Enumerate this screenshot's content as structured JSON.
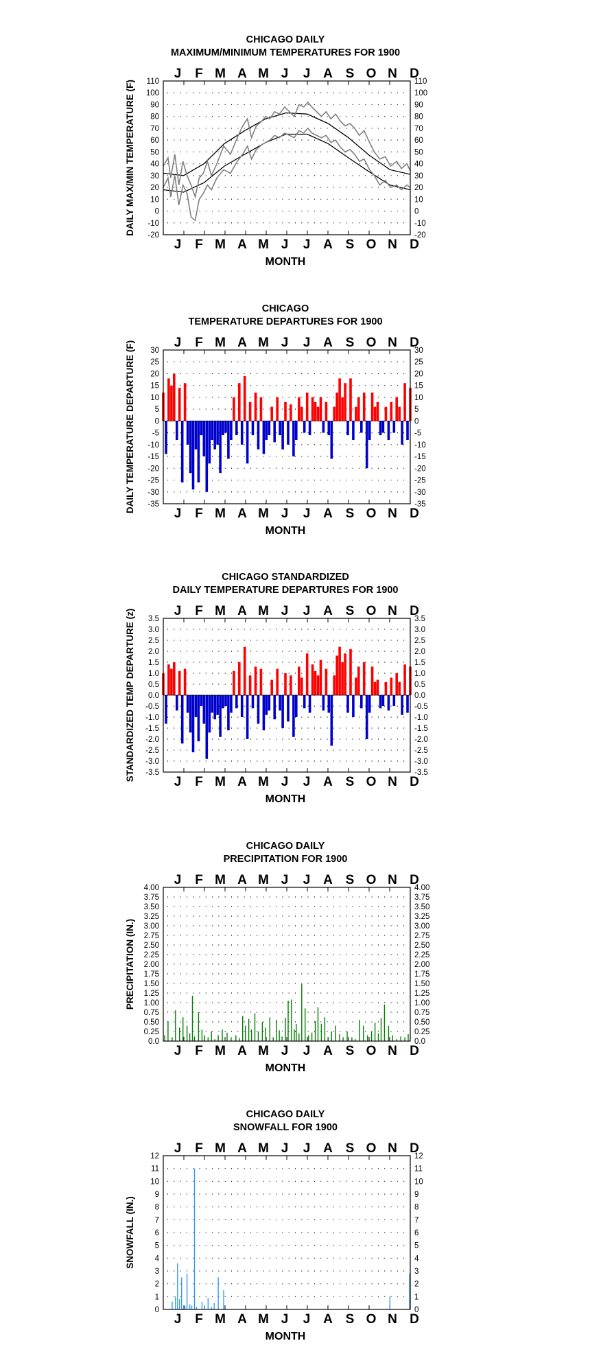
{
  "months": [
    "J",
    "F",
    "M",
    "A",
    "M",
    "J",
    "J",
    "A",
    "S",
    "O",
    "N",
    "D"
  ],
  "colors": {
    "positive": "#ff0000",
    "negative": "#0000cc",
    "precip": "#008000",
    "snow": "#3399ff",
    "temp_obs": "#808080",
    "temp_normal": "#000000"
  },
  "charts": [
    {
      "title1": "CHICAGO DAILY",
      "title2": "MAXIMUM/MINIMUM TEMPERATURES FOR 1900",
      "ylabel": "DAILY MAX/MIN TEMPERATURE (F)",
      "xlabel": "MONTH",
      "ticks": [
        "110",
        "100",
        "90",
        "80",
        "70",
        "60",
        "50",
        "40",
        "30",
        "20",
        "10",
        "0",
        "-10",
        "-20"
      ]
    },
    {
      "title1": "CHICAGO",
      "title2": "TEMPERATURE DEPARTURES FOR 1900",
      "ylabel": "DAILY TEMPERATURE DEPARTURE (F)",
      "xlabel": "MONTH",
      "ticks": [
        "30",
        "25",
        "20",
        "15",
        "10",
        "5",
        "0",
        "-5",
        "-10",
        "-15",
        "-20",
        "-25",
        "-30",
        "-35"
      ]
    },
    {
      "title1": "CHICAGO STANDARDIZED",
      "title2": "DAILY TEMPERATURE DEPARTURES FOR 1900",
      "ylabel": "STANDARDIZED TEMP DEPARTURE (z)",
      "xlabel": "MONTH",
      "ticks": [
        "3.5",
        "3.0",
        "2.5",
        "2.0",
        "1.5",
        "1.0",
        "0.5",
        "0.0",
        "-0.5",
        "-1.0",
        "-1.5",
        "-2.0",
        "-2.5",
        "-3.0",
        "-3.5"
      ]
    },
    {
      "title1": "CHICAGO DAILY",
      "title2": "PRECIPITATION FOR 1900",
      "ylabel": "PRECIPITATION (IN.)",
      "xlabel": "MONTH",
      "ticks": [
        "4.00",
        "3.75",
        "3.50",
        "3.25",
        "3.00",
        "2.75",
        "2.50",
        "2.25",
        "2.00",
        "1.75",
        "1.50",
        "1.25",
        "1.00",
        "0.75",
        "0.50",
        "0.25",
        "0.0"
      ]
    },
    {
      "title1": "CHICAGO DAILY",
      "title2": "SNOWFALL FOR 1900",
      "ylabel": "SNOWFALL (IN.)",
      "xlabel": "MONTH",
      "ticks": [
        "12",
        "11",
        "10",
        "9",
        "8",
        "7",
        "6",
        "5",
        "4",
        "3",
        "2",
        "1",
        "0"
      ]
    }
  ],
  "chart_data": [
    {
      "type": "line",
      "ylim": [
        -20,
        110
      ],
      "grid": true,
      "x_unit": "day of year",
      "series": [
        {
          "kind": "normal_max",
          "points": [
            [
              1,
              32
            ],
            [
              31,
              30
            ],
            [
              61,
              40
            ],
            [
              91,
              57
            ],
            [
              121,
              68
            ],
            [
              152,
              78
            ],
            [
              182,
              83
            ],
            [
              213,
              82
            ],
            [
              244,
              74
            ],
            [
              274,
              62
            ],
            [
              305,
              47
            ],
            [
              335,
              35
            ],
            [
              365,
              31
            ]
          ]
        },
        {
          "kind": "normal_min",
          "points": [
            [
              1,
              18
            ],
            [
              31,
              16
            ],
            [
              61,
              24
            ],
            [
              91,
              38
            ],
            [
              121,
              48
            ],
            [
              152,
              58
            ],
            [
              182,
              65
            ],
            [
              213,
              65
            ],
            [
              244,
              57
            ],
            [
              274,
              45
            ],
            [
              305,
              33
            ],
            [
              335,
              22
            ],
            [
              365,
              18
            ]
          ]
        },
        {
          "kind": "observed_max",
          "points": [
            [
              1,
              38
            ],
            [
              8,
              45
            ],
            [
              12,
              28
            ],
            [
              18,
              48
            ],
            [
              24,
              22
            ],
            [
              30,
              42
            ],
            [
              36,
              30
            ],
            [
              42,
              22
            ],
            [
              48,
              12
            ],
            [
              54,
              28
            ],
            [
              60,
              32
            ],
            [
              66,
              42
            ],
            [
              72,
              30
            ],
            [
              80,
              40
            ],
            [
              90,
              55
            ],
            [
              100,
              48
            ],
            [
              110,
              62
            ],
            [
              118,
              72
            ],
            [
              125,
              78
            ],
            [
              131,
              62
            ],
            [
              138,
              72
            ],
            [
              146,
              76
            ],
            [
              152,
              80
            ],
            [
              158,
              78
            ],
            [
              165,
              84
            ],
            [
              172,
              82
            ],
            [
              180,
              88
            ],
            [
              187,
              84
            ],
            [
              194,
              80
            ],
            [
              201,
              90
            ],
            [
              208,
              88
            ],
            [
              214,
              92
            ],
            [
              220,
              88
            ],
            [
              227,
              84
            ],
            [
              234,
              80
            ],
            [
              241,
              84
            ],
            [
              248,
              78
            ],
            [
              255,
              82
            ],
            [
              262,
              76
            ],
            [
              269,
              72
            ],
            [
              276,
              74
            ],
            [
              283,
              70
            ],
            [
              290,
              64
            ],
            [
              297,
              68
            ],
            [
              305,
              58
            ],
            [
              312,
              50
            ],
            [
              320,
              44
            ],
            [
              328,
              46
            ],
            [
              336,
              38
            ],
            [
              345,
              42
            ],
            [
              352,
              36
            ],
            [
              360,
              40
            ],
            [
              365,
              34
            ]
          ]
        },
        {
          "kind": "observed_min",
          "points": [
            [
              1,
              20
            ],
            [
              8,
              28
            ],
            [
              12,
              12
            ],
            [
              18,
              30
            ],
            [
              24,
              5
            ],
            [
              30,
              22
            ],
            [
              36,
              15
            ],
            [
              42,
              -5
            ],
            [
              48,
              -8
            ],
            [
              54,
              10
            ],
            [
              60,
              15
            ],
            [
              66,
              22
            ],
            [
              72,
              18
            ],
            [
              80,
              28
            ],
            [
              90,
              35
            ],
            [
              100,
              32
            ],
            [
              110,
              42
            ],
            [
              118,
              48
            ],
            [
              125,
              55
            ],
            [
              131,
              44
            ],
            [
              138,
              52
            ],
            [
              146,
              56
            ],
            [
              152,
              58
            ],
            [
              158,
              60
            ],
            [
              165,
              64
            ],
            [
              172,
              62
            ],
            [
              180,
              66
            ],
            [
              187,
              64
            ],
            [
              194,
              62
            ],
            [
              201,
              68
            ],
            [
              208,
              66
            ],
            [
              214,
              70
            ],
            [
              220,
              66
            ],
            [
              227,
              64
            ],
            [
              234,
              62
            ],
            [
              241,
              64
            ],
            [
              248,
              58
            ],
            [
              255,
              60
            ],
            [
              262,
              54
            ],
            [
              269,
              50
            ],
            [
              276,
              52
            ],
            [
              283,
              48
            ],
            [
              290,
              42
            ],
            [
              297,
              44
            ],
            [
              305,
              35
            ],
            [
              312,
              30
            ],
            [
              320,
              22
            ],
            [
              328,
              26
            ],
            [
              336,
              20
            ],
            [
              345,
              22
            ],
            [
              352,
              18
            ],
            [
              360,
              22
            ],
            [
              365,
              20
            ]
          ]
        }
      ]
    },
    {
      "type": "bar",
      "ylim": [
        -35,
        30
      ],
      "grid": true,
      "x_unit": "day of year",
      "days": [
        1,
        5,
        9,
        13,
        17,
        21,
        25,
        29,
        33,
        37,
        41,
        45,
        49,
        53,
        57,
        61,
        65,
        69,
        73,
        77,
        81,
        85,
        89,
        93,
        97,
        101,
        105,
        109,
        113,
        117,
        121,
        125,
        129,
        133,
        137,
        141,
        145,
        149,
        153,
        157,
        161,
        165,
        169,
        173,
        177,
        181,
        185,
        189,
        193,
        197,
        201,
        205,
        209,
        213,
        217,
        221,
        225,
        229,
        233,
        237,
        241,
        245,
        249,
        253,
        257,
        261,
        265,
        269,
        273,
        277,
        281,
        285,
        289,
        293,
        297,
        301,
        305,
        309,
        313,
        317,
        321,
        325,
        329,
        333,
        337,
        341,
        345,
        349,
        353,
        357,
        361,
        365
      ],
      "values": [
        12,
        -14,
        18,
        15,
        20,
        -8,
        14,
        -26,
        16,
        -10,
        -22,
        -29,
        -12,
        -26,
        -6,
        -15,
        -30,
        -18,
        -8,
        -12,
        -10,
        -22,
        -6,
        -5,
        -16,
        -8,
        10,
        -6,
        16,
        -10,
        19,
        -18,
        8,
        -6,
        12,
        -12,
        10,
        -14,
        -8,
        -6,
        6,
        -9,
        10,
        -6,
        -12,
        8,
        -10,
        7,
        -15,
        -8,
        10,
        6,
        -5,
        12,
        -6,
        10,
        8,
        6,
        10,
        -5,
        8,
        -6,
        -16,
        6,
        12,
        18,
        10,
        16,
        -6,
        18,
        -8,
        6,
        10,
        -5,
        12,
        -20,
        -8,
        12,
        6,
        8,
        -6,
        -5,
        6,
        -8,
        8,
        -5,
        10,
        6,
        -10,
        16,
        -8,
        14
      ]
    },
    {
      "type": "bar",
      "ylim": [
        -3.5,
        3.5
      ],
      "grid": true,
      "x_unit": "day of year",
      "days": [
        1,
        5,
        9,
        13,
        17,
        21,
        25,
        29,
        33,
        37,
        41,
        45,
        49,
        53,
        57,
        61,
        65,
        69,
        73,
        77,
        81,
        85,
        89,
        93,
        97,
        101,
        105,
        109,
        113,
        117,
        121,
        125,
        129,
        133,
        137,
        141,
        145,
        149,
        153,
        157,
        161,
        165,
        169,
        173,
        177,
        181,
        185,
        189,
        193,
        197,
        201,
        205,
        209,
        213,
        217,
        221,
        225,
        229,
        233,
        237,
        241,
        245,
        249,
        253,
        257,
        261,
        265,
        269,
        273,
        277,
        281,
        285,
        289,
        293,
        297,
        301,
        305,
        309,
        313,
        317,
        321,
        325,
        329,
        333,
        337,
        341,
        345,
        349,
        353,
        357,
        361,
        365
      ],
      "values": [
        1.0,
        -1.3,
        1.4,
        1.2,
        1.5,
        -0.7,
        1.1,
        -2.2,
        1.2,
        -0.8,
        -1.7,
        -2.6,
        -1.0,
        -2.1,
        -0.5,
        -1.3,
        -2.9,
        -1.7,
        -0.8,
        -1.1,
        -0.9,
        -1.9,
        -0.6,
        -0.5,
        -1.6,
        -0.8,
        1.1,
        -0.6,
        1.5,
        -1.0,
        2.2,
        -2.0,
        0.9,
        -0.6,
        1.3,
        -1.3,
        1.2,
        -1.6,
        -0.9,
        -0.7,
        0.7,
        -1.1,
        1.2,
        -0.7,
        -1.5,
        1.0,
        -1.2,
        0.9,
        -1.9,
        -1.0,
        1.3,
        0.8,
        -0.6,
        1.9,
        -0.8,
        1.4,
        1.1,
        0.9,
        1.6,
        -0.7,
        1.2,
        -0.8,
        -2.3,
        0.9,
        1.8,
        2.2,
        1.5,
        1.9,
        -0.8,
        2.1,
        -1.0,
        0.8,
        1.3,
        -0.6,
        1.5,
        -2.0,
        -0.8,
        1.3,
        0.6,
        0.7,
        -0.6,
        -0.5,
        0.6,
        -0.7,
        0.8,
        -0.5,
        1.0,
        0.6,
        -0.9,
        1.4,
        -0.8,
        1.3
      ]
    },
    {
      "type": "bar",
      "ylim": [
        0,
        4
      ],
      "grid": true,
      "x_unit": "day of year",
      "days": [
        3,
        8,
        14,
        19,
        25,
        30,
        36,
        40,
        44,
        47,
        53,
        58,
        62,
        67,
        72,
        77,
        82,
        88,
        95,
        101,
        108,
        113,
        118,
        122,
        127,
        131,
        136,
        141,
        147,
        152,
        158,
        163,
        168,
        172,
        176,
        181,
        185,
        190,
        194,
        197,
        201,
        205,
        210,
        215,
        220,
        225,
        229,
        234,
        239,
        244,
        249,
        255,
        261,
        266,
        272,
        279,
        284,
        290,
        296,
        302,
        308,
        313,
        318,
        322,
        327,
        333,
        339,
        345,
        351,
        357,
        362
      ],
      "values": [
        0.15,
        0.52,
        0.1,
        0.8,
        0.35,
        0.62,
        0.4,
        0.2,
        1.18,
        0.12,
        0.75,
        0.3,
        0.15,
        0.1,
        0.25,
        0.05,
        0.15,
        0.3,
        0.22,
        0.1,
        0.15,
        0.08,
        0.65,
        0.4,
        0.58,
        0.3,
        0.72,
        0.25,
        0.5,
        0.35,
        0.62,
        0.1,
        0.55,
        0.28,
        0.12,
        0.6,
        1.05,
        1.08,
        0.3,
        0.45,
        0.2,
        1.48,
        0.85,
        0.15,
        0.22,
        0.52,
        0.88,
        0.45,
        0.62,
        0.1,
        0.25,
        0.4,
        0.18,
        0.1,
        0.25,
        0.1,
        0.05,
        0.55,
        0.4,
        0.15,
        0.25,
        0.48,
        0.2,
        0.6,
        0.95,
        0.4,
        0.15,
        0.05,
        0.12,
        0.1,
        0.18
      ]
    },
    {
      "type": "bar",
      "ylim": [
        0,
        12
      ],
      "grid": true,
      "x_unit": "day of year",
      "days": [
        14,
        19,
        22,
        25,
        28,
        33,
        36,
        40,
        43,
        47,
        50,
        58,
        62,
        67,
        72,
        76,
        82,
        90,
        335,
        364
      ],
      "values": [
        0.6,
        1.0,
        3.6,
        0.8,
        2.5,
        0.3,
        2.8,
        0.4,
        0.3,
        11.0,
        0.2,
        0.6,
        0.3,
        0.9,
        0.2,
        0.5,
        2.5,
        1.5,
        1.0,
        2.8
      ]
    }
  ]
}
